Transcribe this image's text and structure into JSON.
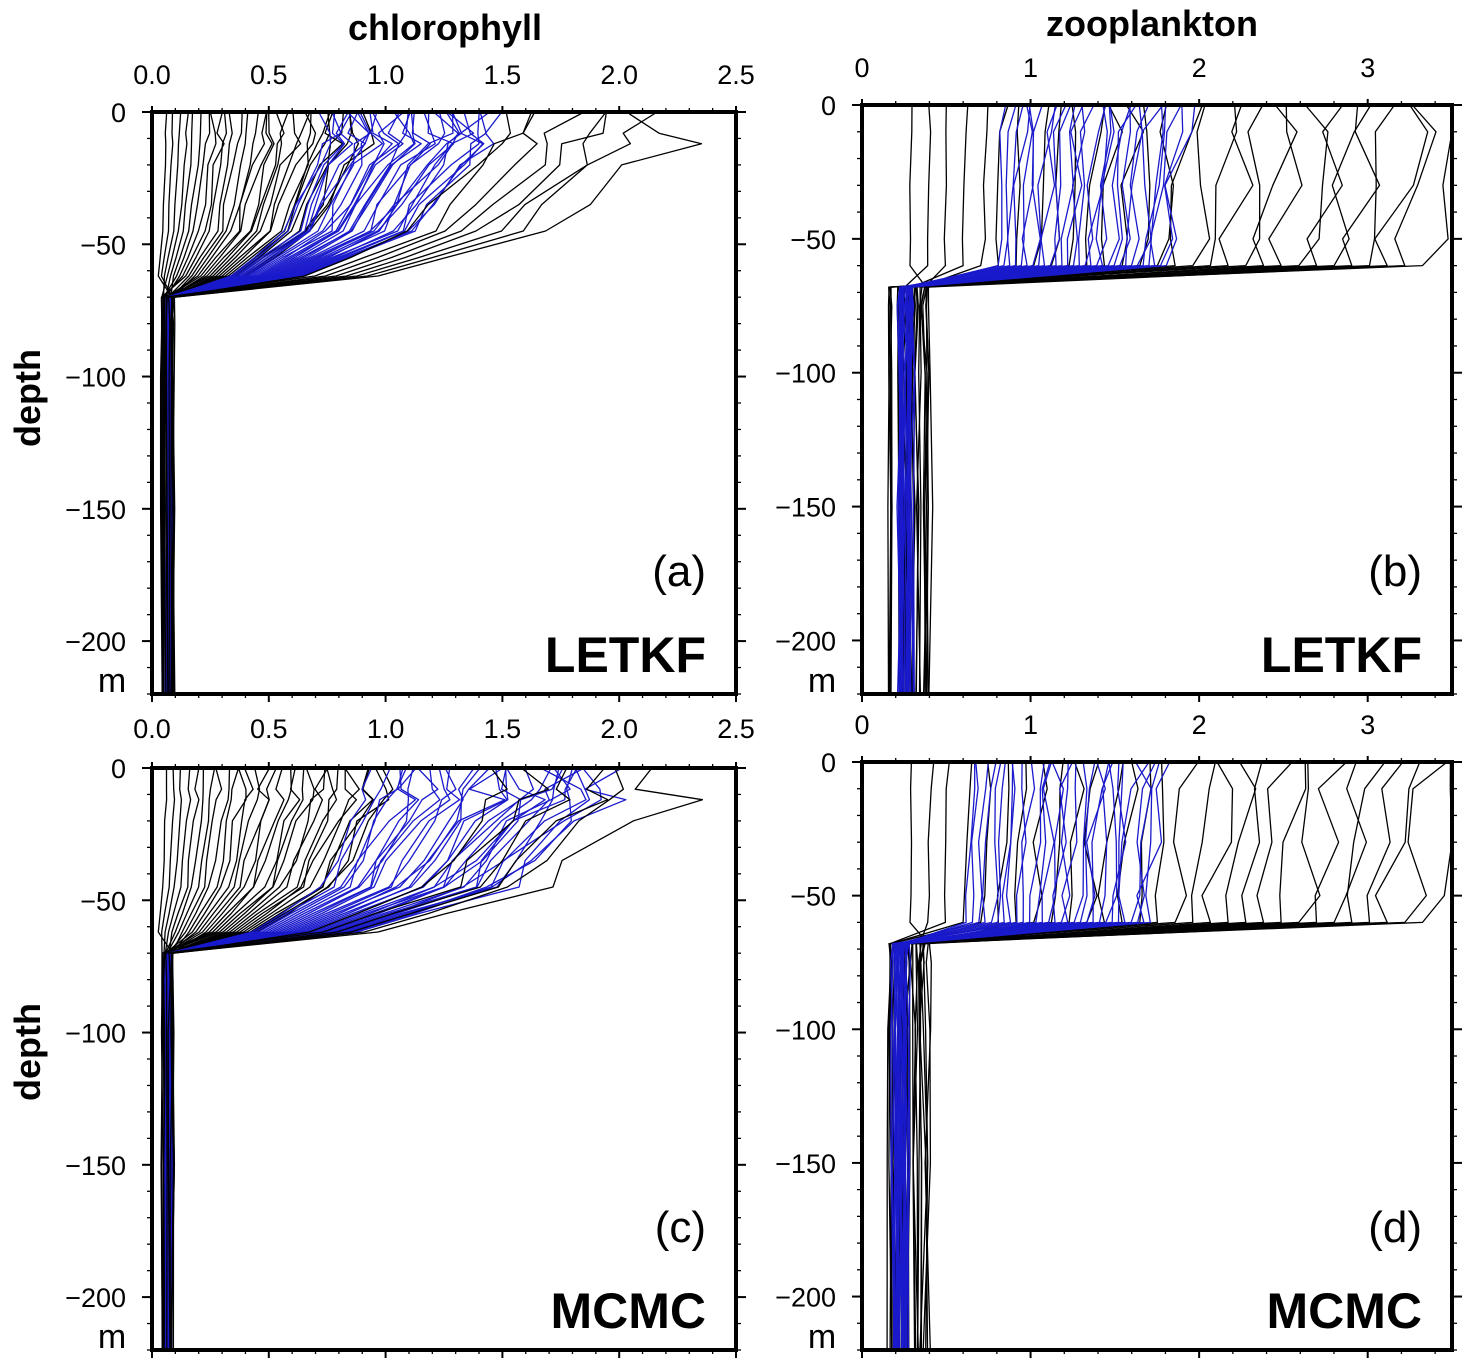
{
  "figure": {
    "column_titles": [
      "chlorophyll",
      "zooplankton"
    ],
    "row_title": "depth",
    "unit": "m"
  },
  "chart_data": [
    {
      "id": "a",
      "type": "line",
      "panel_label": "(a)",
      "method": "LETKF",
      "variable": "chlorophyll",
      "xlim": [
        0,
        2.5
      ],
      "ylim": [
        -220,
        0
      ],
      "xticks": [
        0,
        0.5,
        1.0,
        1.5,
        2.0,
        2.5
      ],
      "xtick_labels": [
        "0.0",
        "0.5",
        "1.0",
        "1.5",
        "2.0",
        "2.5"
      ],
      "show_top_labels": true,
      "show_bottom_labels": true,
      "yticks": [
        0,
        -50,
        -100,
        -150,
        -200
      ],
      "ytick_labels": [
        "0",
        "−50",
        "−100",
        "−150",
        "−200"
      ],
      "depths": [
        0,
        -8,
        -12,
        -20,
        -35,
        -45,
        -55,
        -62,
        -70,
        -80,
        -100,
        -150,
        -220
      ],
      "series": [
        {
          "color": "#000000",
          "count": 30,
          "surface_min": 0.06,
          "surface_max": 0.9,
          "deep_min": 0.04,
          "deep_max": 0.09
        },
        {
          "color": "#1a1acc",
          "count": 32,
          "surface_min": 0.75,
          "surface_max": 1.45,
          "deep_min": 0.06,
          "deep_max": 0.08
        },
        {
          "color": "#000000",
          "count": 8,
          "surface_min": 1.45,
          "surface_max": 2.15,
          "deep_min": 0.05,
          "deep_max": 0.1
        }
      ],
      "peak_max": 2.28
    },
    {
      "id": "b",
      "type": "line",
      "panel_label": "(b)",
      "method": "LETKF",
      "variable": "zooplankton",
      "xlim": [
        0,
        3.5
      ],
      "ylim": [
        -220,
        0
      ],
      "xticks": [
        0,
        1,
        2,
        3
      ],
      "xtick_labels": [
        "0",
        "1",
        "2",
        "3"
      ],
      "show_top_labels": true,
      "show_bottom_labels": false,
      "yticks": [
        0,
        -50,
        -100,
        -150,
        -200
      ],
      "ytick_labels": [
        "0",
        "−50",
        "−100",
        "−150",
        "−200"
      ],
      "depths": [
        0,
        -10,
        -30,
        -50,
        -60,
        -68,
        -75,
        -100,
        -150,
        -220
      ],
      "series": [
        {
          "color": "#000000",
          "count": 30,
          "surface_min": 0.3,
          "surface_max": 3.5,
          "deep_min": 0.15,
          "deep_max": 0.4
        },
        {
          "color": "#1a1acc",
          "count": 30,
          "surface_min": 0.85,
          "surface_max": 1.9,
          "deep_min": 0.22,
          "deep_max": 0.3
        }
      ]
    },
    {
      "id": "c",
      "type": "line",
      "panel_label": "(c)",
      "method": "MCMC",
      "variable": "chlorophyll",
      "xlim": [
        0,
        2.5
      ],
      "ylim": [
        -220,
        0
      ],
      "xticks": [
        0,
        0.5,
        1.0,
        1.5,
        2.0,
        2.5
      ],
      "xtick_labels": [
        "0.0",
        "0.5",
        "1.0",
        "1.5",
        "2.0",
        "2.5"
      ],
      "show_top_labels": false,
      "show_bottom_labels": false,
      "yticks": [
        0,
        -50,
        -100,
        -150,
        -200
      ],
      "ytick_labels": [
        "0",
        "−50",
        "−100",
        "−150",
        "−200"
      ],
      "depths": [
        0,
        -8,
        -12,
        -20,
        -35,
        -45,
        -55,
        -62,
        -70,
        -80,
        -100,
        -150,
        -220
      ],
      "series": [
        {
          "color": "#000000",
          "count": 30,
          "surface_min": 0.06,
          "surface_max": 1.0,
          "deep_min": 0.04,
          "deep_max": 0.09
        },
        {
          "color": "#1a1acc",
          "count": 32,
          "surface_min": 0.95,
          "surface_max": 1.95,
          "deep_min": 0.06,
          "deep_max": 0.08
        },
        {
          "color": "#000000",
          "count": 6,
          "surface_min": 1.5,
          "surface_max": 2.15,
          "deep_min": 0.05,
          "deep_max": 0.1
        }
      ],
      "peak_max": 2.28
    },
    {
      "id": "d",
      "type": "line",
      "panel_label": "(d)",
      "method": "MCMC",
      "variable": "zooplankton",
      "xlim": [
        0,
        3.5
      ],
      "ylim": [
        -220,
        0
      ],
      "xticks": [
        0,
        1,
        2,
        3
      ],
      "xtick_labels": [
        "0",
        "1",
        "2",
        "3"
      ],
      "show_top_labels": true,
      "show_bottom_labels": false,
      "yticks": [
        0,
        -50,
        -100,
        -150,
        -200
      ],
      "ytick_labels": [
        "0",
        "−50",
        "−100",
        "−150",
        "−200"
      ],
      "depths": [
        0,
        -10,
        -30,
        -50,
        -60,
        -68,
        -75,
        -100,
        -150,
        -220
      ],
      "series": [
        {
          "color": "#000000",
          "count": 30,
          "surface_min": 0.3,
          "surface_max": 3.5,
          "deep_min": 0.15,
          "deep_max": 0.4
        },
        {
          "color": "#1a1acc",
          "count": 30,
          "surface_min": 0.65,
          "surface_max": 1.8,
          "deep_min": 0.18,
          "deep_max": 0.28
        }
      ]
    }
  ]
}
